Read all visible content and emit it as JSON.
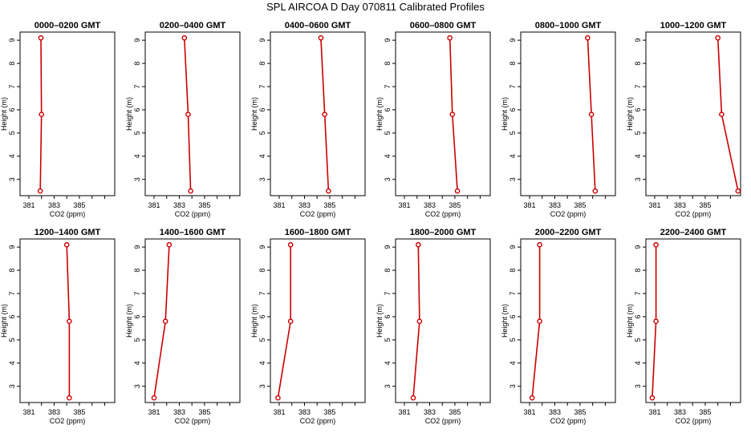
{
  "title": "SPL AIRCOA D  Day 070811  Calibrated Profiles",
  "chart_data": [
    {
      "type": "line",
      "title": "0000–0200 GMT",
      "xlabel": "CO2 (ppm)",
      "ylabel": "Height (m)",
      "x_ticks": [
        381,
        383,
        385
      ],
      "y_ticks": [
        3,
        4,
        5,
        6,
        7,
        8,
        9
      ],
      "xlim": [
        380.3,
        387.8
      ],
      "ylim": [
        2.3,
        9.35
      ],
      "grid": false,
      "series": [
        {
          "color": "#cc0000",
          "points": [
            {
              "x": 381.9,
              "y": 2.5
            },
            {
              "x": 382.0,
              "y": 5.8
            },
            {
              "x": 381.95,
              "y": 9.1
            }
          ]
        }
      ]
    },
    {
      "type": "line",
      "title": "0200–0400 GMT",
      "xlabel": "CO2 (ppm)",
      "ylabel": "Height (m)",
      "x_ticks": [
        381,
        383,
        385
      ],
      "y_ticks": [
        3,
        4,
        5,
        6,
        7,
        8,
        9
      ],
      "xlim": [
        380.3,
        387.8
      ],
      "ylim": [
        2.3,
        9.35
      ],
      "grid": false,
      "series": [
        {
          "color": "#cc0000",
          "points": [
            {
              "x": 383.9,
              "y": 2.5
            },
            {
              "x": 383.7,
              "y": 5.8
            },
            {
              "x": 383.4,
              "y": 9.1
            }
          ]
        }
      ]
    },
    {
      "type": "line",
      "title": "0400–0600 GMT",
      "xlabel": "CO2 (ppm)",
      "ylabel": "Height (m)",
      "x_ticks": [
        381,
        383,
        385
      ],
      "y_ticks": [
        3,
        4,
        5,
        6,
        7,
        8,
        9
      ],
      "xlim": [
        380.3,
        387.8
      ],
      "ylim": [
        2.3,
        9.35
      ],
      "grid": false,
      "series": [
        {
          "color": "#cc0000",
          "points": [
            {
              "x": 384.9,
              "y": 2.5
            },
            {
              "x": 384.6,
              "y": 5.8
            },
            {
              "x": 384.3,
              "y": 9.1
            }
          ]
        }
      ]
    },
    {
      "type": "line",
      "title": "0600–0800 GMT",
      "xlabel": "CO2 (ppm)",
      "ylabel": "Height (m)",
      "x_ticks": [
        381,
        383,
        385
      ],
      "y_ticks": [
        3,
        4,
        5,
        6,
        7,
        8,
        9
      ],
      "xlim": [
        380.3,
        387.8
      ],
      "ylim": [
        2.3,
        9.35
      ],
      "grid": false,
      "series": [
        {
          "color": "#cc0000",
          "points": [
            {
              "x": 385.2,
              "y": 2.5
            },
            {
              "x": 384.8,
              "y": 5.8
            },
            {
              "x": 384.6,
              "y": 9.1
            }
          ]
        }
      ]
    },
    {
      "type": "line",
      "title": "0800–1000 GMT",
      "xlabel": "CO2 (ppm)",
      "ylabel": "Height (m)",
      "x_ticks": [
        381,
        383,
        385
      ],
      "y_ticks": [
        3,
        4,
        5,
        6,
        7,
        8,
        9
      ],
      "xlim": [
        380.3,
        387.8
      ],
      "ylim": [
        2.3,
        9.35
      ],
      "grid": false,
      "series": [
        {
          "color": "#cc0000",
          "points": [
            {
              "x": 386.2,
              "y": 2.5
            },
            {
              "x": 385.9,
              "y": 5.8
            },
            {
              "x": 385.6,
              "y": 9.1
            }
          ]
        }
      ]
    },
    {
      "type": "line",
      "title": "1000–1200 GMT",
      "xlabel": "CO2 (ppm)",
      "ylabel": "Height (m)",
      "x_ticks": [
        381,
        383,
        385
      ],
      "y_ticks": [
        3,
        4,
        5,
        6,
        7,
        8,
        9
      ],
      "xlim": [
        380.3,
        387.8
      ],
      "ylim": [
        2.3,
        9.35
      ],
      "grid": false,
      "series": [
        {
          "color": "#cc0000",
          "points": [
            {
              "x": 387.6,
              "y": 2.5
            },
            {
              "x": 386.3,
              "y": 5.8
            },
            {
              "x": 386.0,
              "y": 9.1
            }
          ]
        }
      ]
    },
    {
      "type": "line",
      "title": "1200–1400 GMT",
      "xlabel": "CO2 (ppm)",
      "ylabel": "Height (m)",
      "x_ticks": [
        381,
        383,
        385
      ],
      "y_ticks": [
        3,
        4,
        5,
        6,
        7,
        8,
        9
      ],
      "xlim": [
        380.3,
        387.8
      ],
      "ylim": [
        2.3,
        9.35
      ],
      "grid": false,
      "series": [
        {
          "color": "#cc0000",
          "points": [
            {
              "x": 384.2,
              "y": 2.5
            },
            {
              "x": 384.2,
              "y": 5.8
            },
            {
              "x": 384.0,
              "y": 9.1
            }
          ]
        }
      ]
    },
    {
      "type": "line",
      "title": "1400–1600 GMT",
      "xlabel": "CO2 (ppm)",
      "ylabel": "Height (m)",
      "x_ticks": [
        381,
        383,
        385
      ],
      "y_ticks": [
        3,
        4,
        5,
        6,
        7,
        8,
        9
      ],
      "xlim": [
        380.3,
        387.8
      ],
      "ylim": [
        2.3,
        9.35
      ],
      "grid": false,
      "series": [
        {
          "color": "#cc0000",
          "points": [
            {
              "x": 381.0,
              "y": 2.5
            },
            {
              "x": 381.9,
              "y": 5.8
            },
            {
              "x": 382.2,
              "y": 9.1
            }
          ]
        }
      ]
    },
    {
      "type": "line",
      "title": "1600–1800 GMT",
      "xlabel": "CO2 (ppm)",
      "ylabel": "Height (m)",
      "x_ticks": [
        381,
        383,
        385
      ],
      "y_ticks": [
        3,
        4,
        5,
        6,
        7,
        8,
        9
      ],
      "xlim": [
        380.3,
        387.8
      ],
      "ylim": [
        2.3,
        9.35
      ],
      "grid": false,
      "series": [
        {
          "color": "#cc0000",
          "points": [
            {
              "x": 380.9,
              "y": 2.5
            },
            {
              "x": 381.9,
              "y": 5.8
            },
            {
              "x": 381.9,
              "y": 9.1
            }
          ]
        }
      ]
    },
    {
      "type": "line",
      "title": "1800–2000 GMT",
      "xlabel": "CO2 (ppm)",
      "ylabel": "Height (m)",
      "x_ticks": [
        381,
        383,
        385
      ],
      "y_ticks": [
        3,
        4,
        5,
        6,
        7,
        8,
        9
      ],
      "xlim": [
        380.3,
        387.8
      ],
      "ylim": [
        2.3,
        9.35
      ],
      "grid": false,
      "series": [
        {
          "color": "#cc0000",
          "points": [
            {
              "x": 381.7,
              "y": 2.5
            },
            {
              "x": 382.2,
              "y": 5.8
            },
            {
              "x": 382.1,
              "y": 9.1
            }
          ]
        }
      ]
    },
    {
      "type": "line",
      "title": "2000–2200 GMT",
      "xlabel": "CO2 (ppm)",
      "ylabel": "Height (m)",
      "x_ticks": [
        381,
        383,
        385
      ],
      "y_ticks": [
        3,
        4,
        5,
        6,
        7,
        8,
        9
      ],
      "xlim": [
        380.3,
        387.8
      ],
      "ylim": [
        2.3,
        9.35
      ],
      "grid": false,
      "series": [
        {
          "color": "#cc0000",
          "points": [
            {
              "x": 381.2,
              "y": 2.5
            },
            {
              "x": 381.8,
              "y": 5.8
            },
            {
              "x": 381.8,
              "y": 9.1
            }
          ]
        }
      ]
    },
    {
      "type": "line",
      "title": "2200–2400 GMT",
      "xlabel": "CO2 (ppm)",
      "ylabel": "Height (m)",
      "x_ticks": [
        381,
        383,
        385
      ],
      "y_ticks": [
        3,
        4,
        5,
        6,
        7,
        8,
        9
      ],
      "xlim": [
        380.3,
        387.8
      ],
      "ylim": [
        2.3,
        9.35
      ],
      "grid": false,
      "series": [
        {
          "color": "#cc0000",
          "points": [
            {
              "x": 380.8,
              "y": 2.5
            },
            {
              "x": 381.1,
              "y": 5.8
            },
            {
              "x": 381.1,
              "y": 9.1
            }
          ]
        }
      ]
    }
  ]
}
